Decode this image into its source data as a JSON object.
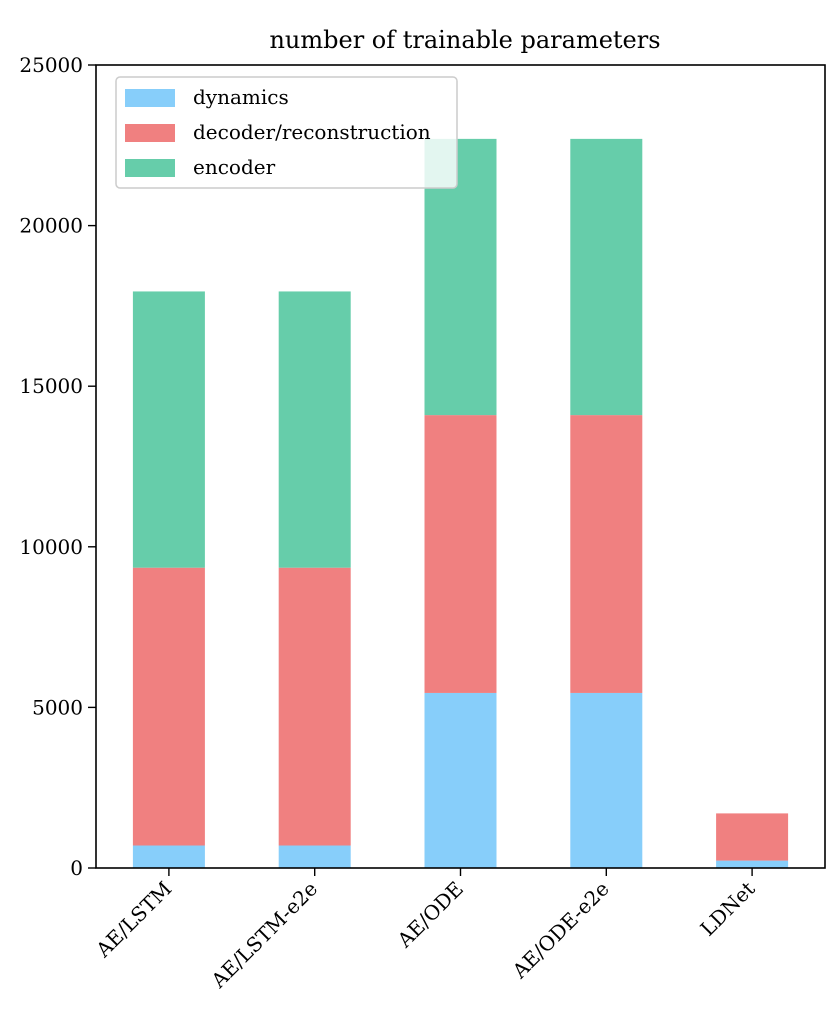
{
  "chart_data": {
    "type": "bar",
    "stacked": true,
    "title": "number of trainable parameters",
    "xlabel": "",
    "ylabel": "",
    "categories": [
      "AE/LSTM",
      "AE/LSTM-e2e",
      "AE/ODE",
      "AE/ODE-e2e",
      "LDNet"
    ],
    "series": [
      {
        "name": "dynamics",
        "color": "#87cefa",
        "values": [
          700,
          700,
          5450,
          5450,
          230
        ]
      },
      {
        "name": "decoder/reconstruction",
        "color": "#f08080",
        "values": [
          8650,
          8650,
          8650,
          8650,
          1470
        ]
      },
      {
        "name": "encoder",
        "color": "#66cdaa",
        "values": [
          8600,
          8600,
          8600,
          8600,
          0
        ]
      }
    ],
    "ylim": [
      0,
      25000
    ],
    "yticks": [
      0,
      5000,
      10000,
      15000,
      20000,
      25000
    ],
    "ytick_labels": [
      "0",
      "5000",
      "10000",
      "15000",
      "20000",
      "25000"
    ],
    "grid": false,
    "legend_position": "top-left"
  }
}
